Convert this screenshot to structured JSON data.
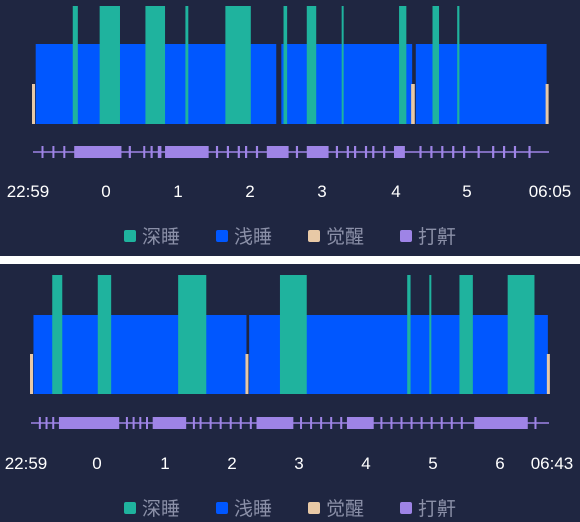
{
  "colors": {
    "background": "#1f2641",
    "deep": "#1fb39e",
    "light": "#0057ff",
    "awake": "#e8c9a6",
    "snore": "#9e84e6",
    "tick_text": "#ffffff",
    "legend_text": "#8b90a8"
  },
  "legend": [
    {
      "label": "深睡",
      "color": "#1fb39e"
    },
    {
      "label": "浅睡",
      "color": "#0057ff"
    },
    {
      "label": "觉醒",
      "color": "#e8c9a6"
    },
    {
      "label": "打鼾",
      "color": "#9e84e6"
    }
  ],
  "chart_data": [
    {
      "type": "bar",
      "start": "22:59",
      "end": "06:05",
      "x_ticks": [
        "22:59",
        "0",
        "1",
        "2",
        "3",
        "4",
        "5",
        "06:05"
      ],
      "x_tick_hours": [
        22.983,
        24,
        25,
        26,
        27,
        28,
        29,
        30.083
      ],
      "light": [
        [
          23.02,
          26.33
        ],
        [
          26.4,
          28.2
        ],
        [
          28.25,
          30.05
        ]
      ],
      "deep": [
        [
          23.53,
          23.6
        ],
        [
          23.9,
          24.18
        ],
        [
          24.53,
          24.8
        ],
        [
          25.08,
          25.12
        ],
        [
          25.63,
          25.98
        ],
        [
          26.43,
          26.48
        ],
        [
          26.75,
          26.88
        ],
        [
          27.23,
          27.25
        ],
        [
          28.02,
          28.12
        ],
        [
          28.48,
          28.57
        ],
        [
          28.82,
          28.85
        ]
      ],
      "awake": [
        [
          22.983,
          23.02
        ],
        [
          28.2,
          28.25
        ],
        [
          30.05,
          30.083
        ]
      ],
      "snore": [
        [
          23.1,
          23.12
        ],
        [
          23.25,
          23.27
        ],
        [
          23.4,
          23.42
        ],
        [
          23.55,
          24.2
        ],
        [
          24.3,
          24.33
        ],
        [
          24.5,
          24.52
        ],
        [
          24.6,
          24.63
        ],
        [
          24.7,
          24.75
        ],
        [
          24.8,
          25.4
        ],
        [
          25.5,
          25.53
        ],
        [
          25.65,
          25.68
        ],
        [
          25.8,
          25.83
        ],
        [
          25.9,
          25.93
        ],
        [
          26.05,
          26.08
        ],
        [
          26.2,
          26.5
        ],
        [
          26.6,
          26.63
        ],
        [
          26.75,
          27.05
        ],
        [
          27.15,
          27.18
        ],
        [
          27.3,
          27.33
        ],
        [
          27.4,
          27.43
        ],
        [
          27.55,
          27.58
        ],
        [
          27.65,
          27.68
        ],
        [
          27.8,
          27.83
        ],
        [
          27.95,
          28.1
        ],
        [
          28.3,
          28.33
        ],
        [
          28.45,
          28.48
        ],
        [
          28.6,
          28.63
        ],
        [
          28.75,
          28.78
        ],
        [
          28.9,
          28.93
        ],
        [
          29.1,
          29.13
        ],
        [
          29.3,
          29.33
        ],
        [
          29.45,
          29.48
        ],
        [
          29.6,
          29.63
        ],
        [
          29.8,
          29.83
        ]
      ]
    },
    {
      "type": "bar",
      "start": "22:59",
      "end": "06:43",
      "x_ticks": [
        "22:59",
        "0",
        "1",
        "2",
        "3",
        "4",
        "5",
        "6",
        "06:43"
      ],
      "x_tick_hours": [
        22.983,
        24,
        25,
        26,
        27,
        28,
        29,
        30,
        30.717
      ],
      "light": [
        [
          23.02,
          26.2
        ],
        [
          26.24,
          30.7
        ]
      ],
      "deep": [
        [
          23.3,
          23.45
        ],
        [
          23.98,
          24.18
        ],
        [
          25.18,
          25.6
        ],
        [
          26.7,
          27.1
        ],
        [
          28.6,
          28.65
        ],
        [
          28.93,
          28.96
        ],
        [
          29.38,
          29.58
        ],
        [
          30.1,
          30.5
        ]
      ],
      "awake": [
        [
          22.983,
          23.02
        ],
        [
          26.2,
          26.24
        ],
        [
          30.7,
          30.717
        ]
      ],
      "snore": [
        [
          23.1,
          23.12
        ],
        [
          23.2,
          23.22
        ],
        [
          23.3,
          23.32
        ],
        [
          23.4,
          24.3
        ],
        [
          24.4,
          24.42
        ],
        [
          24.5,
          24.52
        ],
        [
          24.6,
          24.62
        ],
        [
          24.7,
          24.72
        ],
        [
          24.8,
          25.3
        ],
        [
          25.4,
          25.42
        ],
        [
          25.5,
          25.52
        ],
        [
          25.65,
          25.67
        ],
        [
          25.8,
          25.82
        ],
        [
          25.95,
          25.97
        ],
        [
          26.1,
          26.12
        ],
        [
          26.25,
          26.27
        ],
        [
          26.35,
          26.9
        ],
        [
          27.0,
          27.02
        ],
        [
          27.15,
          27.17
        ],
        [
          27.3,
          27.32
        ],
        [
          27.45,
          27.47
        ],
        [
          27.6,
          27.62
        ],
        [
          27.7,
          28.1
        ],
        [
          28.2,
          28.22
        ],
        [
          28.35,
          28.37
        ],
        [
          28.5,
          28.52
        ],
        [
          28.65,
          28.67
        ],
        [
          28.8,
          28.82
        ],
        [
          28.95,
          28.97
        ],
        [
          29.1,
          29.12
        ],
        [
          29.25,
          29.27
        ],
        [
          29.4,
          29.42
        ],
        [
          29.6,
          30.4
        ],
        [
          30.5,
          30.52
        ]
      ]
    }
  ]
}
